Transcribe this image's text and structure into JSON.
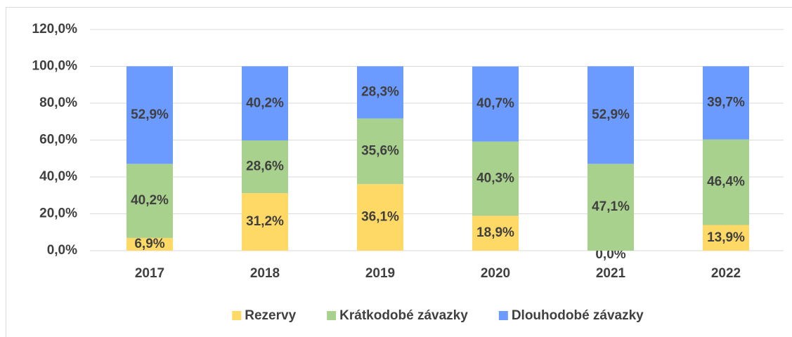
{
  "chart_data": {
    "type": "stacked_bar",
    "categories": [
      "2017",
      "2018",
      "2019",
      "2020",
      "2021",
      "2022"
    ],
    "series": [
      {
        "name": "Rezervy",
        "color": "#FFD966",
        "values": [
          6.9,
          31.2,
          36.1,
          18.9,
          0.0,
          13.9
        ],
        "value_labels": [
          "6,9%",
          "31,2%",
          "36,1%",
          "18,9%",
          "0,0%",
          "13,9%"
        ]
      },
      {
        "name": "Krátkodobé závazky",
        "color": "#A9D18E",
        "values": [
          40.2,
          28.6,
          35.6,
          40.3,
          47.1,
          46.4
        ],
        "value_labels": [
          "40,2%",
          "28,6%",
          "35,6%",
          "40,3%",
          "47,1%",
          "46,4%"
        ]
      },
      {
        "name": "Dlouhodobé závazky",
        "color": "#6B9BFF",
        "values": [
          52.9,
          40.2,
          28.3,
          40.7,
          52.9,
          39.7
        ],
        "value_labels": [
          "52,9%",
          "40,2%",
          "28,3%",
          "40,7%",
          "52,9%",
          "39,7%"
        ]
      }
    ],
    "ylim": [
      0,
      120
    ],
    "yticks": [
      {
        "value": 0,
        "label": "0,0%"
      },
      {
        "value": 20,
        "label": "20,0%"
      },
      {
        "value": 40,
        "label": "40,0%"
      },
      {
        "value": 60,
        "label": "60,0%"
      },
      {
        "value": 80,
        "label": "80,0%"
      },
      {
        "value": 100,
        "label": "100,0%"
      },
      {
        "value": 120,
        "label": "120,0%"
      }
    ],
    "grid": true,
    "legend": "bottom"
  }
}
